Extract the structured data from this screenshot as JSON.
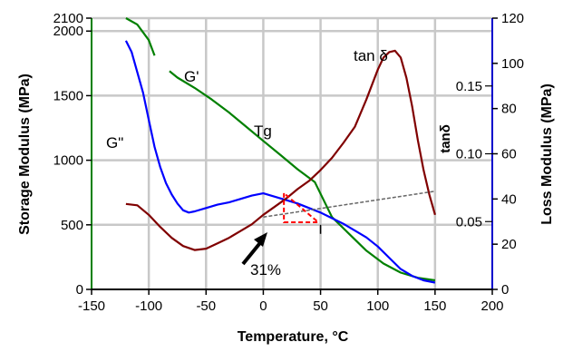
{
  "chart_data": {
    "type": "line",
    "xlabel": "Temperature, °C",
    "ylabel_left": "Storage Modulus (MPa)",
    "ylabel_right": "Loss Modulus (MPa)",
    "xlim": [
      -150,
      200
    ],
    "ylim_left": [
      0,
      2100
    ],
    "ylim_right": [
      0,
      120
    ],
    "ylim_tan": [
      0,
      0.2
    ],
    "x_ticks": [
      "-150",
      "-100",
      "-50",
      "0",
      "50",
      "100",
      "150",
      "200"
    ],
    "y_left_ticks": [
      "0",
      "500",
      "1000",
      "1500",
      "2000",
      "2100"
    ],
    "y_right_ticks": [
      "0",
      "20",
      "40",
      "60",
      "80",
      "100",
      "120"
    ],
    "tan_ticks": [
      "0.05",
      "0.10",
      "0.15"
    ],
    "tan_axis_label": "tanδ",
    "grid": true,
    "colors": {
      "storage": "#008000",
      "loss": "#0000ff",
      "tan": "#800000",
      "axis_left": "#008000",
      "axis_right": "#0000cc",
      "tangent": "#666666",
      "triangle": "#ff0000"
    },
    "series": [
      {
        "name": "G'",
        "axis": "left",
        "color": "storage",
        "x": [
          -120,
          -110,
          -100,
          -95,
          null,
          -82,
          -75,
          -60,
          -45,
          -30,
          -15,
          0,
          15,
          30,
          45,
          60,
          75,
          90,
          105,
          120,
          135,
          150
        ],
        "values": [
          2100,
          2050,
          1930,
          1810,
          null,
          1690,
          1640,
          1560,
          1470,
          1370,
          1260,
          1150,
          1040,
          930,
          830,
          560,
          430,
          300,
          200,
          130,
          90,
          70
        ]
      },
      {
        "name": "G\"",
        "axis": "right",
        "color": "loss",
        "x": [
          -120,
          -115,
          -110,
          -105,
          -100,
          -95,
          -90,
          -85,
          -80,
          -75,
          -70,
          -65,
          -60,
          -50,
          -40,
          -30,
          -20,
          -10,
          0,
          10,
          20,
          30,
          40,
          50,
          60,
          70,
          80,
          90,
          100,
          110,
          120,
          130,
          140,
          150
        ],
        "values": [
          110,
          105,
          96,
          87,
          75,
          63,
          54,
          47,
          42,
          38,
          35,
          34,
          34.5,
          36,
          37.5,
          38.5,
          40,
          41.5,
          42.5,
          41,
          39.5,
          38,
          36,
          34,
          31.5,
          29,
          26,
          23,
          19,
          14,
          9,
          6,
          4,
          3
        ]
      },
      {
        "name": "tanδ",
        "axis": "tan",
        "color": "tan",
        "x": [
          -120,
          -110,
          -100,
          -90,
          -80,
          -70,
          -60,
          -50,
          -40,
          -30,
          -20,
          -10,
          0,
          10,
          20,
          30,
          40,
          50,
          60,
          70,
          80,
          90,
          100,
          105,
          110,
          115,
          120,
          125,
          130,
          135,
          140,
          145,
          150
        ],
        "values": [
          0.063,
          0.062,
          0.055,
          0.046,
          0.038,
          0.032,
          0.029,
          0.03,
          0.034,
          0.038,
          0.043,
          0.048,
          0.055,
          0.061,
          0.067,
          0.074,
          0.08,
          0.088,
          0.097,
          0.108,
          0.12,
          0.14,
          0.162,
          0.171,
          0.175,
          0.176,
          0.171,
          0.156,
          0.135,
          0.11,
          0.088,
          0.07,
          0.055
        ]
      }
    ],
    "tangent_line": {
      "x": [
        0,
        150
      ],
      "values_left": [
        560,
        760
      ]
    },
    "annotations": {
      "g_prime": "G'",
      "g_double_prime": "G\"",
      "tan_delta": "tan δ",
      "tg": "Tg",
      "percent": "31%"
    }
  }
}
